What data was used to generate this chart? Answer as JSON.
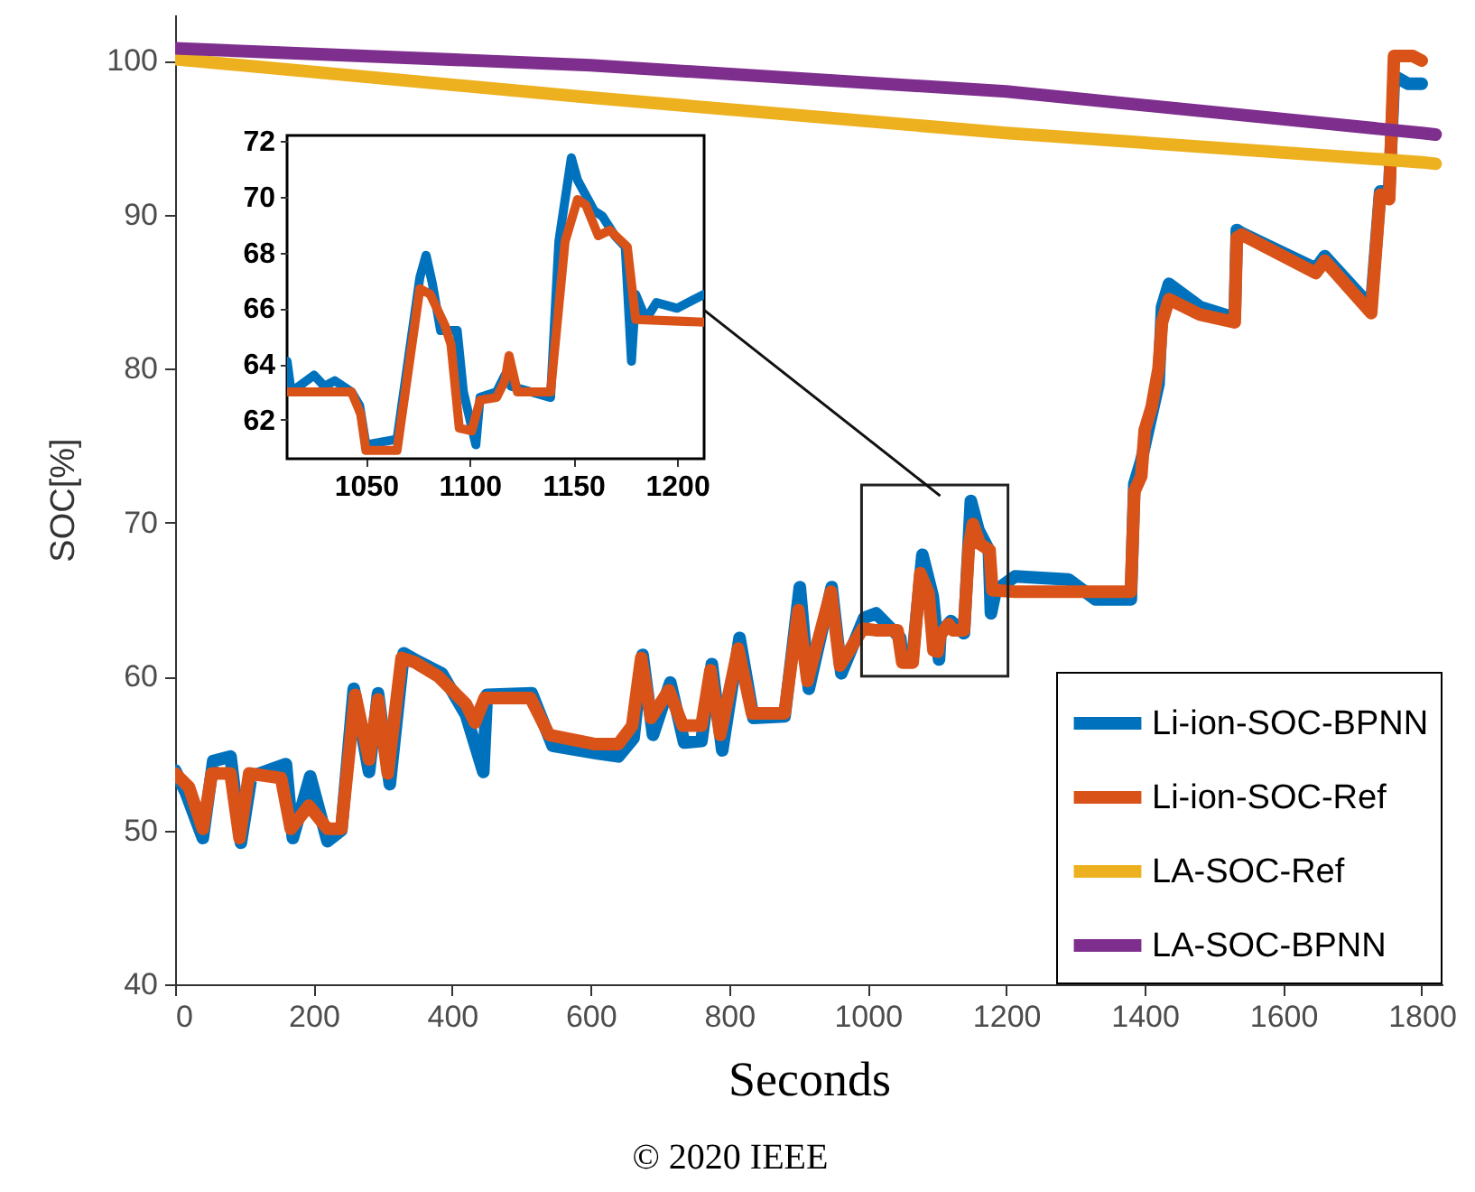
{
  "chart_data": [
    {
      "type": "line",
      "xlabel": "Seconds",
      "ylabel": "SOC[%]",
      "annotations": [
        "© 2020 IEEE"
      ],
      "legend": "bottom right",
      "xlim": [
        0,
        1830
      ],
      "ylim": [
        40,
        103
      ],
      "xticks": [
        0,
        200,
        400,
        600,
        800,
        1000,
        1200,
        1400,
        1600,
        1800
      ],
      "yticks": [
        40,
        50,
        60,
        70,
        80,
        90,
        100
      ],
      "series": [
        {
          "name": "Li-ion-SOC-BPNN",
          "color": "#0072bd",
          "x": [
            0,
            15,
            40,
            55,
            80,
            95,
            110,
            160,
            170,
            195,
            220,
            240,
            258,
            280,
            293,
            310,
            330,
            350,
            385,
            420,
            445,
            450,
            515,
            545,
            610,
            640,
            662,
            675,
            690,
            715,
            735,
            760,
            775,
            790,
            815,
            835,
            880,
            902,
            915,
            948,
            962,
            995,
            1012,
            1047,
            1050,
            1065,
            1079,
            1094,
            1103,
            1105,
            1120,
            1139,
            1149,
            1160,
            1175,
            1178,
            1185,
            1213,
            1290,
            1329,
            1380,
            1385,
            1395,
            1420,
            1425,
            1435,
            1480,
            1530,
            1533,
            1540,
            1647,
            1660,
            1727,
            1740,
            1753,
            1760,
            1780,
            1800
          ],
          "values": [
            53.9,
            52.5,
            49.5,
            54.5,
            54.8,
            49.2,
            53.5,
            54.3,
            49.5,
            53.5,
            49.3,
            50,
            59.2,
            53.8,
            58.9,
            53,
            61.5,
            61,
            60.2,
            57.5,
            53.8,
            58.8,
            58.9,
            55.5,
            55,
            54.8,
            56,
            61.4,
            56.2,
            59.6,
            55.7,
            55.8,
            60.8,
            55.2,
            62.5,
            57.3,
            57.4,
            65.8,
            59.2,
            65.8,
            60.2,
            63.8,
            64.1,
            62.5,
            61.1,
            61.3,
            67.9,
            65.2,
            61.1,
            62.8,
            63.6,
            62.8,
            71.4,
            69.5,
            68.2,
            64.1,
            65.6,
            66.5,
            66.3,
            65,
            65,
            72.5,
            74,
            79,
            84,
            85.5,
            84,
            83.3,
            89,
            88.8,
            86.5,
            87.3,
            84,
            91.5,
            91.5,
            99,
            98.5,
            98.5
          ]
        },
        {
          "name": "Li-ion-SOC-Ref",
          "color": "#d95319",
          "x": [
            0,
            20,
            40,
            53,
            80,
            93,
            107,
            153,
            167,
            193,
            220,
            240,
            260,
            280,
            293,
            307,
            327,
            347,
            380,
            420,
            433,
            447,
            513,
            540,
            607,
            640,
            660,
            673,
            687,
            713,
            733,
            760,
            773,
            787,
            813,
            833,
            880,
            900,
            913,
            947,
            960,
            993,
            1012,
            1043,
            1050,
            1065,
            1076,
            1088,
            1095,
            1101,
            1105,
            1117,
            1123,
            1139,
            1146,
            1152,
            1162,
            1176,
            1180,
            1213,
            1329,
            1380,
            1385,
            1395,
            1400,
            1410,
            1420,
            1425,
            1435,
            1480,
            1530,
            1533,
            1540,
            1647,
            1660,
            1727,
            1740,
            1753,
            1760,
            1787,
            1800
          ],
          "values": [
            53.7,
            52.8,
            50.1,
            53.7,
            53.7,
            49.5,
            53.7,
            53.4,
            50.1,
            51.6,
            50.1,
            50.1,
            58.8,
            54.6,
            58.5,
            53.7,
            61.2,
            60.9,
            60,
            58.2,
            57,
            58.6,
            58.6,
            56.2,
            55.6,
            55.6,
            56.8,
            61.2,
            57.3,
            59.1,
            56.8,
            56.8,
            60.4,
            56.2,
            61.8,
            57.6,
            57.6,
            64.3,
            59.7,
            65.5,
            60.7,
            63.1,
            63.0,
            63.0,
            60.9,
            60.9,
            66.7,
            65.4,
            61.7,
            61.6,
            62.7,
            63.4,
            63.0,
            63.0,
            68.4,
            69.9,
            68.6,
            68.2,
            65.6,
            65.5,
            65.5,
            65.5,
            72,
            73,
            76,
            77.5,
            80,
            83,
            84.5,
            83.5,
            83.0,
            88.5,
            88.7,
            86.2,
            87,
            83.6,
            91.3,
            91,
            100.3,
            100.3,
            100
          ]
        },
        {
          "name": "LA-SOC-Ref",
          "color": "#edb120",
          "x": [
            0,
            600,
            1200,
            1800,
            1820
          ],
          "values": [
            100.1,
            97.6,
            95.3,
            93.4,
            93.3
          ]
        },
        {
          "name": "LA-SOC-BPNN",
          "color": "#7e2f8e",
          "x": [
            0,
            600,
            1200,
            1800,
            1820
          ],
          "values": [
            100.8,
            99.7,
            98.0,
            95.3,
            95.2
          ]
        }
      ]
    },
    {
      "type": "line",
      "xlim": [
        1012,
        1213
      ],
      "ylim": [
        60.6,
        72.2
      ],
      "xticks": [
        1050,
        1100,
        1150,
        1200
      ],
      "yticks": [
        62,
        64,
        66,
        68,
        70,
        72
      ],
      "series": [
        {
          "color": "#0072bd",
          "x": [
            1012,
            1014,
            1025,
            1030,
            1035,
            1043,
            1047,
            1050,
            1065,
            1076,
            1079,
            1082,
            1086,
            1094,
            1097,
            1103,
            1105,
            1113,
            1117,
            1120,
            1139,
            1143,
            1149,
            1152,
            1160,
            1164,
            1170,
            1175,
            1178,
            1180,
            1185,
            1190,
            1200,
            1213
          ],
          "values": [
            64.1,
            63.0,
            63.6,
            63.2,
            63.4,
            63.0,
            62.5,
            61.1,
            61.3,
            67.1,
            67.9,
            66.9,
            65.2,
            65.2,
            63.0,
            61.1,
            62.8,
            63.0,
            63.6,
            63.2,
            62.8,
            68.4,
            71.4,
            70.6,
            69.5,
            69.3,
            68.6,
            68.2,
            64.1,
            66.5,
            65.6,
            66.2,
            66.0,
            66.5
          ]
        },
        {
          "color": "#d95319",
          "x": [
            1012,
            1043,
            1047.5,
            1050,
            1065,
            1076,
            1081,
            1088,
            1091,
            1095,
            1101,
            1105,
            1113,
            1117,
            1119,
            1123,
            1139,
            1146,
            1152,
            1156,
            1162,
            1167.5,
            1176,
            1180,
            1213
          ],
          "values": [
            63.0,
            63.0,
            62.2,
            60.9,
            60.9,
            66.7,
            66.5,
            65.4,
            64.7,
            61.7,
            61.6,
            62.7,
            62.8,
            63.4,
            64.3,
            63.0,
            63.0,
            68.4,
            69.9,
            69.7,
            68.6,
            68.8,
            68.2,
            65.6,
            65.5
          ]
        }
      ]
    }
  ]
}
